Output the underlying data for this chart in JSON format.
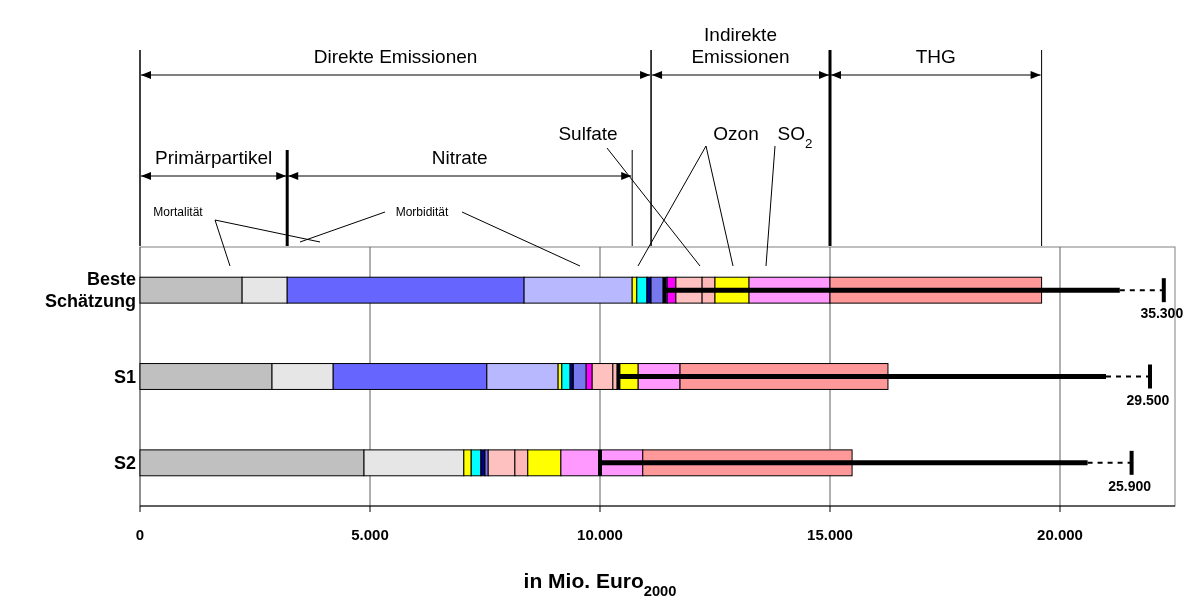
{
  "chart_data": {
    "type": "bar",
    "orientation": "horizontal",
    "stacked": true,
    "categories": [
      "Beste Schätzung",
      "S1",
      "S2"
    ],
    "series": [
      {
        "color": "#c0c0c0",
        "values": [
          2220,
          2870,
          4870
        ]
      },
      {
        "color": "#e6e6e6",
        "values": [
          980,
          1330,
          2170
        ]
      },
      {
        "color": "#6666ff",
        "values": [
          5150,
          3340,
          0
        ]
      },
      {
        "color": "#b8b8ff",
        "values": [
          2350,
          1550,
          0
        ]
      },
      {
        "color": "#ffff00",
        "values": [
          100,
          80,
          160
        ]
      },
      {
        "color": "#00ffff",
        "values": [
          220,
          180,
          210
        ]
      },
      {
        "color": "#000080",
        "values": [
          90,
          70,
          90
        ]
      },
      {
        "color": "#7777ee",
        "values": [
          350,
          280,
          70
        ]
      },
      {
        "color": "#ff00ff",
        "values": [
          190,
          130,
          0
        ]
      },
      {
        "color": "#ffc0c0",
        "values": [
          570,
          450,
          580
        ]
      },
      {
        "color": "#ffb8b8",
        "values": [
          280,
          130,
          280
        ]
      },
      {
        "color": "#ffff00",
        "values": [
          740,
          420,
          720
        ]
      },
      {
        "color": "#ff99ff",
        "values": [
          1760,
          910,
          1780
        ]
      },
      {
        "color": "#ff9999",
        "values": [
          4600,
          4520,
          4550
        ],
        "errors": [
          [
            11400,
            21300
          ],
          [
            10400,
            21000
          ],
          [
            10000,
            20600
          ]
        ]
      }
    ],
    "xlim": [
      0,
      22500
    ],
    "xticks": [
      {
        "value": 0,
        "label": "0"
      },
      {
        "value": 5000,
        "label": "5.000"
      },
      {
        "value": 10000,
        "label": "10.000"
      },
      {
        "value": 15000,
        "label": "15.000"
      },
      {
        "value": 20000,
        "label": "20.000"
      }
    ],
    "xlabel": "in Mio. Euro$_{2000}$",
    "grid": "x",
    "annotations": [
      "Direkte Emissionen",
      "Indirekte Emissionen",
      "THG",
      "Primärpartikel",
      "Nitrate",
      "Sulfate",
      "Ozon",
      "SO$_{2}$",
      "Mortalität",
      "Morbidität",
      {
        "text": "35.300",
        "x": 21300,
        "y": "Beste Schätzung"
      },
      {
        "text": "29.500",
        "x": 21000,
        "y": "S1"
      },
      {
        "text": "25.900",
        "x": 20600,
        "y": "S2"
      }
    ]
  }
}
